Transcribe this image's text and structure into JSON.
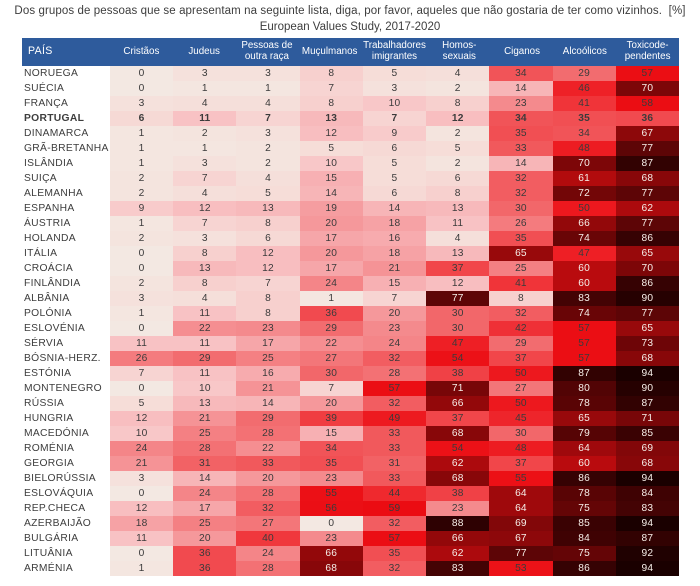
{
  "chart_data": {
    "type": "heatmap",
    "title": "Dos grupos de pessoas que se apresentam na seguinte lista, diga, por favor, aqueles que não gostaria de ter como vizinhos.  [%]",
    "subtitle": "European Values Study, 2017-2020",
    "unit": "%",
    "row_header": "PAÍS",
    "columns": [
      "Cristãos",
      "Judeus",
      "Pessoas de outra raça",
      "Muçulmanos",
      "Trabalhadores imigrantes",
      "Homos-sexuais",
      "Ciganos",
      "Alcoólicos",
      "Toxicode-pendentes"
    ],
    "rows": [
      {
        "country": "NORUEGA",
        "bold": false,
        "values": [
          0,
          3,
          3,
          8,
          5,
          4,
          34,
          29,
          57
        ]
      },
      {
        "country": "SUÉCIA",
        "bold": false,
        "values": [
          0,
          1,
          1,
          7,
          3,
          2,
          14,
          46,
          70
        ]
      },
      {
        "country": "FRANÇA",
        "bold": false,
        "values": [
          3,
          4,
          4,
          8,
          10,
          8,
          23,
          41,
          58
        ]
      },
      {
        "country": "PORTUGAL",
        "bold": true,
        "values": [
          6,
          11,
          7,
          13,
          7,
          12,
          34,
          35,
          36
        ]
      },
      {
        "country": "DINAMARCA",
        "bold": false,
        "values": [
          1,
          2,
          3,
          12,
          9,
          2,
          35,
          34,
          67
        ]
      },
      {
        "country": "GRÃ-BRETANHA",
        "bold": false,
        "values": [
          1,
          1,
          2,
          5,
          6,
          5,
          33,
          48,
          77
        ]
      },
      {
        "country": "ISLÂNDIA",
        "bold": false,
        "values": [
          1,
          3,
          2,
          10,
          5,
          2,
          14,
          70,
          87
        ]
      },
      {
        "country": "SUIÇA",
        "bold": false,
        "values": [
          2,
          7,
          4,
          15,
          5,
          6,
          32,
          61,
          68
        ]
      },
      {
        "country": "ALEMANHA",
        "bold": false,
        "values": [
          2,
          4,
          5,
          14,
          6,
          8,
          32,
          72,
          77
        ]
      },
      {
        "country": "ESPANHA",
        "bold": false,
        "values": [
          9,
          12,
          13,
          19,
          14,
          13,
          30,
          50,
          62
        ]
      },
      {
        "country": "ÁUSTRIA",
        "bold": false,
        "values": [
          1,
          7,
          8,
          20,
          18,
          11,
          26,
          66,
          77
        ]
      },
      {
        "country": "HOLANDA",
        "bold": false,
        "values": [
          2,
          3,
          6,
          17,
          16,
          4,
          35,
          74,
          86
        ]
      },
      {
        "country": "ITÁLIA",
        "bold": false,
        "values": [
          0,
          8,
          12,
          20,
          18,
          13,
          65,
          47,
          65
        ]
      },
      {
        "country": "CROÁCIA",
        "bold": false,
        "values": [
          0,
          13,
          12,
          17,
          21,
          37,
          25,
          60,
          70
        ]
      },
      {
        "country": "FINLÂNDIA",
        "bold": false,
        "values": [
          2,
          8,
          7,
          24,
          15,
          12,
          41,
          60,
          86
        ]
      },
      {
        "country": "ALBÂNIA",
        "bold": false,
        "values": [
          3,
          4,
          8,
          1,
          7,
          77,
          8,
          83,
          90
        ]
      },
      {
        "country": "POLÓNIA",
        "bold": false,
        "values": [
          1,
          11,
          8,
          36,
          20,
          30,
          32,
          74,
          77
        ]
      },
      {
        "country": "ESLOVÉNIA",
        "bold": false,
        "values": [
          0,
          22,
          23,
          29,
          23,
          30,
          42,
          57,
          65
        ]
      },
      {
        "country": "SÉRVIA",
        "bold": false,
        "values": [
          11,
          11,
          17,
          22,
          24,
          47,
          29,
          57,
          73
        ]
      },
      {
        "country": "BÓSNIA-HERZ.",
        "bold": false,
        "values": [
          26,
          29,
          25,
          27,
          32,
          54,
          37,
          57,
          68
        ]
      },
      {
        "country": "ESTÓNIA",
        "bold": false,
        "values": [
          7,
          11,
          16,
          30,
          28,
          38,
          50,
          87,
          94
        ]
      },
      {
        "country": "MONTENEGRO",
        "bold": false,
        "values": [
          0,
          10,
          21,
          7,
          57,
          71,
          27,
          80,
          90
        ]
      },
      {
        "country": "RÚSSIA",
        "bold": false,
        "values": [
          5,
          13,
          14,
          20,
          32,
          66,
          50,
          78,
          87
        ]
      },
      {
        "country": "HUNGRIA",
        "bold": false,
        "values": [
          12,
          21,
          29,
          39,
          49,
          37,
          45,
          65,
          71
        ]
      },
      {
        "country": "MACEDÓNIA",
        "bold": false,
        "values": [
          10,
          25,
          28,
          15,
          33,
          68,
          30,
          79,
          85
        ]
      },
      {
        "country": "ROMÉNIA",
        "bold": false,
        "values": [
          24,
          28,
          22,
          34,
          33,
          54,
          48,
          64,
          69
        ]
      },
      {
        "country": "GEORGIA",
        "bold": false,
        "values": [
          21,
          31,
          33,
          35,
          31,
          62,
          37,
          60,
          68
        ]
      },
      {
        "country": "BIELORÚSSIA",
        "bold": false,
        "values": [
          3,
          14,
          20,
          23,
          33,
          68,
          55,
          86,
          94
        ]
      },
      {
        "country": "ESLOVÁQUIA",
        "bold": false,
        "values": [
          0,
          24,
          28,
          55,
          44,
          38,
          64,
          78,
          84
        ]
      },
      {
        "country": "REP.CHECA",
        "bold": false,
        "values": [
          12,
          17,
          32,
          56,
          59,
          23,
          64,
          75,
          83
        ]
      },
      {
        "country": "AZERBAIJÃO",
        "bold": false,
        "values": [
          18,
          25,
          27,
          0,
          32,
          88,
          69,
          85,
          94
        ]
      },
      {
        "country": "BULGÁRIA",
        "bold": false,
        "values": [
          11,
          20,
          40,
          23,
          57,
          66,
          67,
          84,
          87
        ]
      },
      {
        "country": "LITUÂNIA",
        "bold": false,
        "values": [
          0,
          36,
          24,
          66,
          35,
          62,
          77,
          75,
          92
        ]
      },
      {
        "country": "ARMÉNIA",
        "bold": false,
        "values": [
          1,
          36,
          28,
          68,
          32,
          83,
          53,
          86,
          94
        ]
      }
    ],
    "value_range": [
      0,
      94
    ],
    "legend_position": "none",
    "grid": false,
    "colors": {
      "header_bg": "#2e5b9c",
      "header_text": "#ffffff",
      "cell_text_dark": "#3b3b3b",
      "cell_text_light": "#f6efe9",
      "light_text_threshold": 60,
      "scale_low": "#f3e8e2",
      "scale_mid": "#eb0c12",
      "scale_high": "#1a0000"
    }
  }
}
